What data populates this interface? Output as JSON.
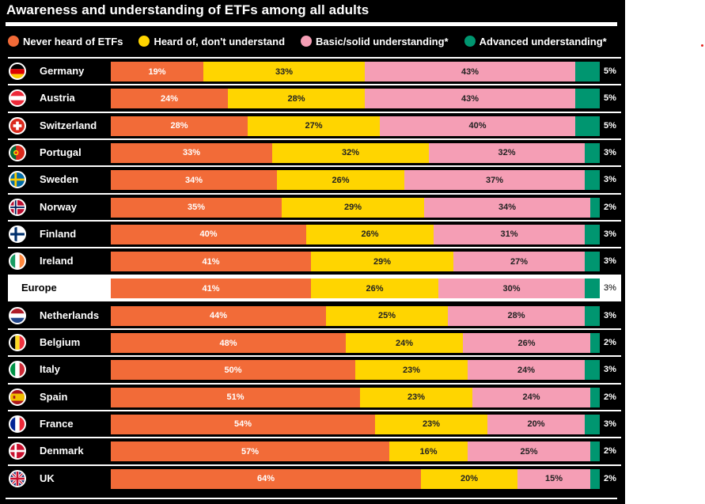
{
  "chart_data": {
    "type": "bar",
    "orientation": "horizontal",
    "stacked": true,
    "title": "Awareness and understanding of ETFs among all adults",
    "xlabel": "",
    "ylabel": "",
    "xlim": [
      0,
      100
    ],
    "grid": false,
    "legend_position": "top",
    "value_suffix": "%",
    "series": [
      {
        "name": "Never heard of ETFs",
        "color": "#f26b38",
        "label_color": "#ffffff"
      },
      {
        "name": "Heard of, don't understand",
        "color": "#ffd500",
        "label_color": "#222222"
      },
      {
        "name": "Basic/solid understanding*",
        "color": "#f59eb5",
        "label_color": "#222222"
      },
      {
        "name": "Advanced understanding*",
        "color": "#009670",
        "label_color": "#ffffff"
      }
    ],
    "categories": [
      "Germany",
      "Austria",
      "Switzerland",
      "Portugal",
      "Sweden",
      "Norway",
      "Finland",
      "Ireland",
      "Europe",
      "Netherlands",
      "Belgium",
      "Italy",
      "Spain",
      "France",
      "Denmark",
      "UK"
    ],
    "rows": [
      {
        "label": "Germany",
        "flag": "germany-flag",
        "highlight": false,
        "values": [
          19,
          33,
          43,
          5
        ]
      },
      {
        "label": "Austria",
        "flag": "austria-flag",
        "highlight": false,
        "values": [
          24,
          28,
          43,
          5
        ]
      },
      {
        "label": "Switzerland",
        "flag": "switzerland-flag",
        "highlight": false,
        "values": [
          28,
          27,
          40,
          5
        ]
      },
      {
        "label": "Portugal",
        "flag": "portugal-flag",
        "highlight": false,
        "values": [
          33,
          32,
          32,
          3
        ]
      },
      {
        "label": "Sweden",
        "flag": "sweden-flag",
        "highlight": false,
        "values": [
          34,
          26,
          37,
          3
        ]
      },
      {
        "label": "Norway",
        "flag": "norway-flag",
        "highlight": false,
        "values": [
          35,
          29,
          34,
          2
        ]
      },
      {
        "label": "Finland",
        "flag": "finland-flag",
        "highlight": false,
        "values": [
          40,
          26,
          31,
          3
        ]
      },
      {
        "label": "Ireland",
        "flag": "ireland-flag",
        "highlight": false,
        "values": [
          41,
          29,
          27,
          3
        ]
      },
      {
        "label": "Europe",
        "flag": null,
        "highlight": true,
        "values": [
          41,
          26,
          30,
          3
        ]
      },
      {
        "label": "Netherlands",
        "flag": "netherlands-flag",
        "highlight": false,
        "values": [
          44,
          25,
          28,
          3
        ]
      },
      {
        "label": "Belgium",
        "flag": "belgium-flag",
        "highlight": false,
        "values": [
          48,
          24,
          26,
          2
        ]
      },
      {
        "label": "Italy",
        "flag": "italy-flag",
        "highlight": false,
        "values": [
          50,
          23,
          24,
          3
        ]
      },
      {
        "label": "Spain",
        "flag": "spain-flag",
        "highlight": false,
        "values": [
          51,
          23,
          24,
          2
        ]
      },
      {
        "label": "France",
        "flag": "france-flag",
        "highlight": false,
        "values": [
          54,
          23,
          20,
          3
        ]
      },
      {
        "label": "Denmark",
        "flag": "denmark-flag",
        "highlight": false,
        "values": [
          57,
          16,
          25,
          2
        ]
      },
      {
        "label": "UK",
        "flag": "uk-flag",
        "highlight": false,
        "values": [
          64,
          20,
          15,
          2
        ]
      }
    ]
  },
  "colors": {
    "background": "#000000",
    "highlight_row": "#ffffff",
    "text": "#ffffff",
    "marker_dot": "#e2211c"
  }
}
